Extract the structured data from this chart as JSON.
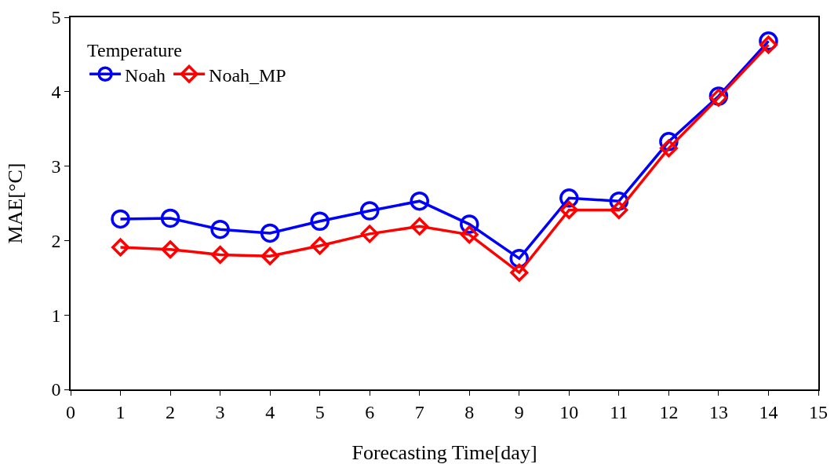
{
  "chart_data": {
    "type": "line",
    "xlabel": "Forecasting Time[day]",
    "ylabel": "MAE[°C]",
    "legend_title": "Temperature",
    "legend": "top left",
    "grid": false,
    "x": [
      1,
      2,
      3,
      4,
      5,
      6,
      7,
      8,
      9,
      10,
      11,
      12,
      13,
      14
    ],
    "xlim": [
      0,
      15
    ],
    "xticks": [
      0,
      1,
      2,
      3,
      4,
      5,
      6,
      7,
      8,
      9,
      10,
      11,
      12,
      13,
      14,
      15
    ],
    "ylim": [
      0,
      5
    ],
    "yticks": [
      0,
      1,
      2,
      3,
      4,
      5
    ],
    "series": [
      {
        "name": "Noah",
        "color": "#0000ff",
        "marker": "circle",
        "values": [
          2.29,
          2.3,
          2.15,
          2.1,
          2.26,
          2.4,
          2.53,
          2.22,
          1.76,
          2.57,
          2.53,
          3.33,
          3.94,
          4.68
        ]
      },
      {
        "name": "Noah_MP",
        "color": "#ff0000",
        "marker": "diamond",
        "values": [
          1.91,
          1.88,
          1.81,
          1.79,
          1.93,
          2.09,
          2.19,
          2.08,
          1.57,
          2.41,
          2.41,
          3.24,
          3.92,
          4.63
        ]
      }
    ]
  }
}
